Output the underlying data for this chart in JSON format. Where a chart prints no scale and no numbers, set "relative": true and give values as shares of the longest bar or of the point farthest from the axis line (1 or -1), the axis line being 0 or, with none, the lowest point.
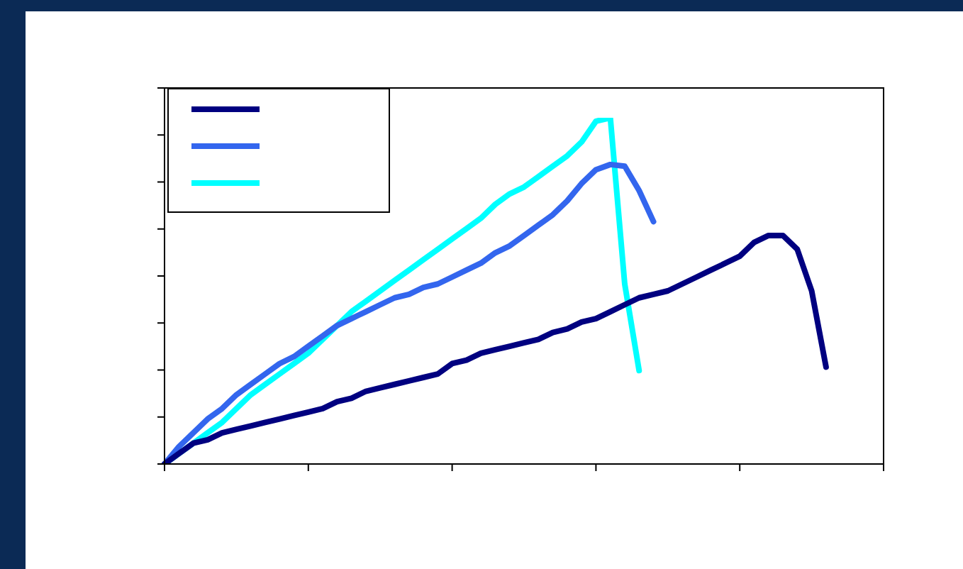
{
  "chart_data": {
    "type": "line",
    "relative": true,
    "categories": [
      null,
      null,
      null,
      null,
      null,
      null,
      null,
      null,
      null,
      null,
      null,
      null,
      null,
      null,
      null,
      null,
      null,
      null,
      null,
      null,
      null,
      null,
      null,
      null,
      null,
      null,
      null,
      null,
      null,
      null,
      null,
      null,
      null,
      null,
      null,
      null,
      null,
      null,
      null,
      null,
      null,
      null,
      null,
      null,
      null,
      null,
      null,
      null,
      null,
      null,
      null
    ],
    "series": [
      {
        "color": "#000080",
        "values": [
          0,
          0.03,
          0.06,
          0.07,
          0.09,
          0.1,
          0.11,
          0.12,
          0.13,
          0.14,
          0.15,
          0.16,
          0.18,
          0.19,
          0.21,
          0.22,
          0.23,
          0.24,
          0.25,
          0.26,
          0.29,
          0.3,
          0.32,
          0.33,
          0.34,
          0.35,
          0.36,
          0.38,
          0.39,
          0.41,
          0.42,
          0.44,
          0.46,
          0.48,
          0.49,
          0.5,
          0.52,
          0.54,
          0.56,
          0.58,
          0.6,
          0.64,
          0.66,
          0.66,
          0.62,
          0.5,
          0.28,
          null,
          null,
          null,
          null
        ]
      },
      {
        "color": "#3366ee",
        "values": [
          0,
          0.05,
          0.09,
          0.13,
          0.16,
          0.2,
          0.23,
          0.26,
          0.29,
          0.31,
          0.34,
          0.37,
          0.4,
          0.42,
          0.44,
          0.46,
          0.48,
          0.49,
          0.51,
          0.52,
          0.54,
          0.56,
          0.58,
          0.61,
          0.63,
          0.66,
          0.69,
          0.72,
          0.76,
          0.81,
          0.85,
          0.865,
          0.86,
          0.79,
          0.7,
          null,
          null,
          null,
          null,
          null,
          null,
          null,
          null,
          null,
          null,
          null,
          null,
          null,
          null,
          null,
          null
        ]
      },
      {
        "color": "#00ffff",
        "values": [
          0,
          0.03,
          0.06,
          0.09,
          0.12,
          0.16,
          0.2,
          0.23,
          0.26,
          0.29,
          0.32,
          0.36,
          0.4,
          0.44,
          0.47,
          0.5,
          0.53,
          0.56,
          0.59,
          0.62,
          0.65,
          0.68,
          0.71,
          0.75,
          0.78,
          0.8,
          0.83,
          0.86,
          0.89,
          0.93,
          0.99,
          1,
          0.52,
          0.27,
          null,
          null,
          null,
          null,
          null,
          null,
          null,
          null,
          null,
          null,
          null,
          null,
          null,
          null,
          null,
          null,
          null
        ]
      }
    ],
    "marker": "none",
    "line_style": "solid",
    "legend": false
  }
}
